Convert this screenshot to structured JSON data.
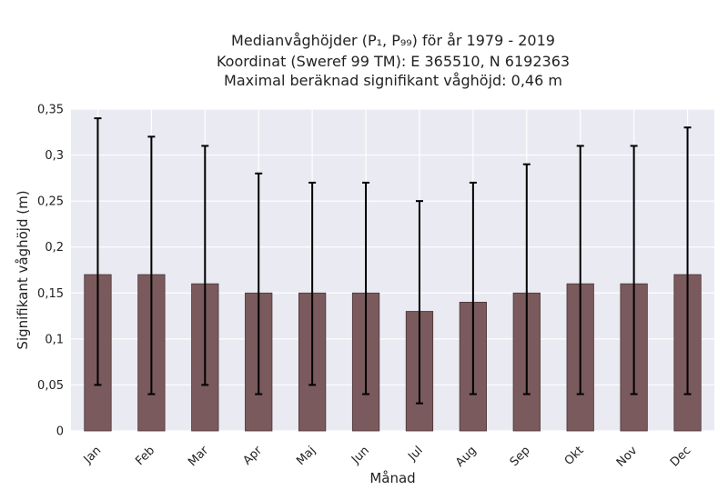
{
  "chart_data": {
    "type": "bar",
    "title_lines": [
      "Medianvåghöjder (P₁, P₉₉) för år 1979 - 2019",
      "Koordinat (Sweref 99 TM): E 365510, N 6192363",
      "Maximal beräknad signifikant våghöjd: 0,46 m"
    ],
    "xlabel": "Månad",
    "ylabel": "Signifikant våghöjd (m)",
    "categories": [
      "Jan",
      "Feb",
      "Mar",
      "Apr",
      "Maj",
      "Jun",
      "Jul",
      "Aug",
      "Sep",
      "Okt",
      "Nov",
      "Dec"
    ],
    "values": [
      0.17,
      0.17,
      0.16,
      0.15,
      0.15,
      0.15,
      0.13,
      0.14,
      0.15,
      0.16,
      0.16,
      0.17
    ],
    "p1": [
      0.05,
      0.04,
      0.05,
      0.04,
      0.05,
      0.04,
      0.03,
      0.04,
      0.04,
      0.04,
      0.04,
      0.04
    ],
    "p99": [
      0.34,
      0.32,
      0.31,
      0.28,
      0.27,
      0.27,
      0.25,
      0.27,
      0.29,
      0.31,
      0.31,
      0.33
    ],
    "ylim": [
      0,
      0.35
    ],
    "yticks": [
      0,
      0.05,
      0.1,
      0.15,
      0.2,
      0.25,
      0.3,
      0.35
    ],
    "ytick_labels": [
      "0",
      "0,05",
      "0,1",
      "0,15",
      "0,2",
      "0,25",
      "0,3",
      "0,35"
    ],
    "grid": true,
    "colors": {
      "bar": "#7a5a5c",
      "bar_edge": "#4a3436",
      "error": "#000000",
      "background": "#eaeaf2",
      "grid": "#ffffff"
    }
  }
}
